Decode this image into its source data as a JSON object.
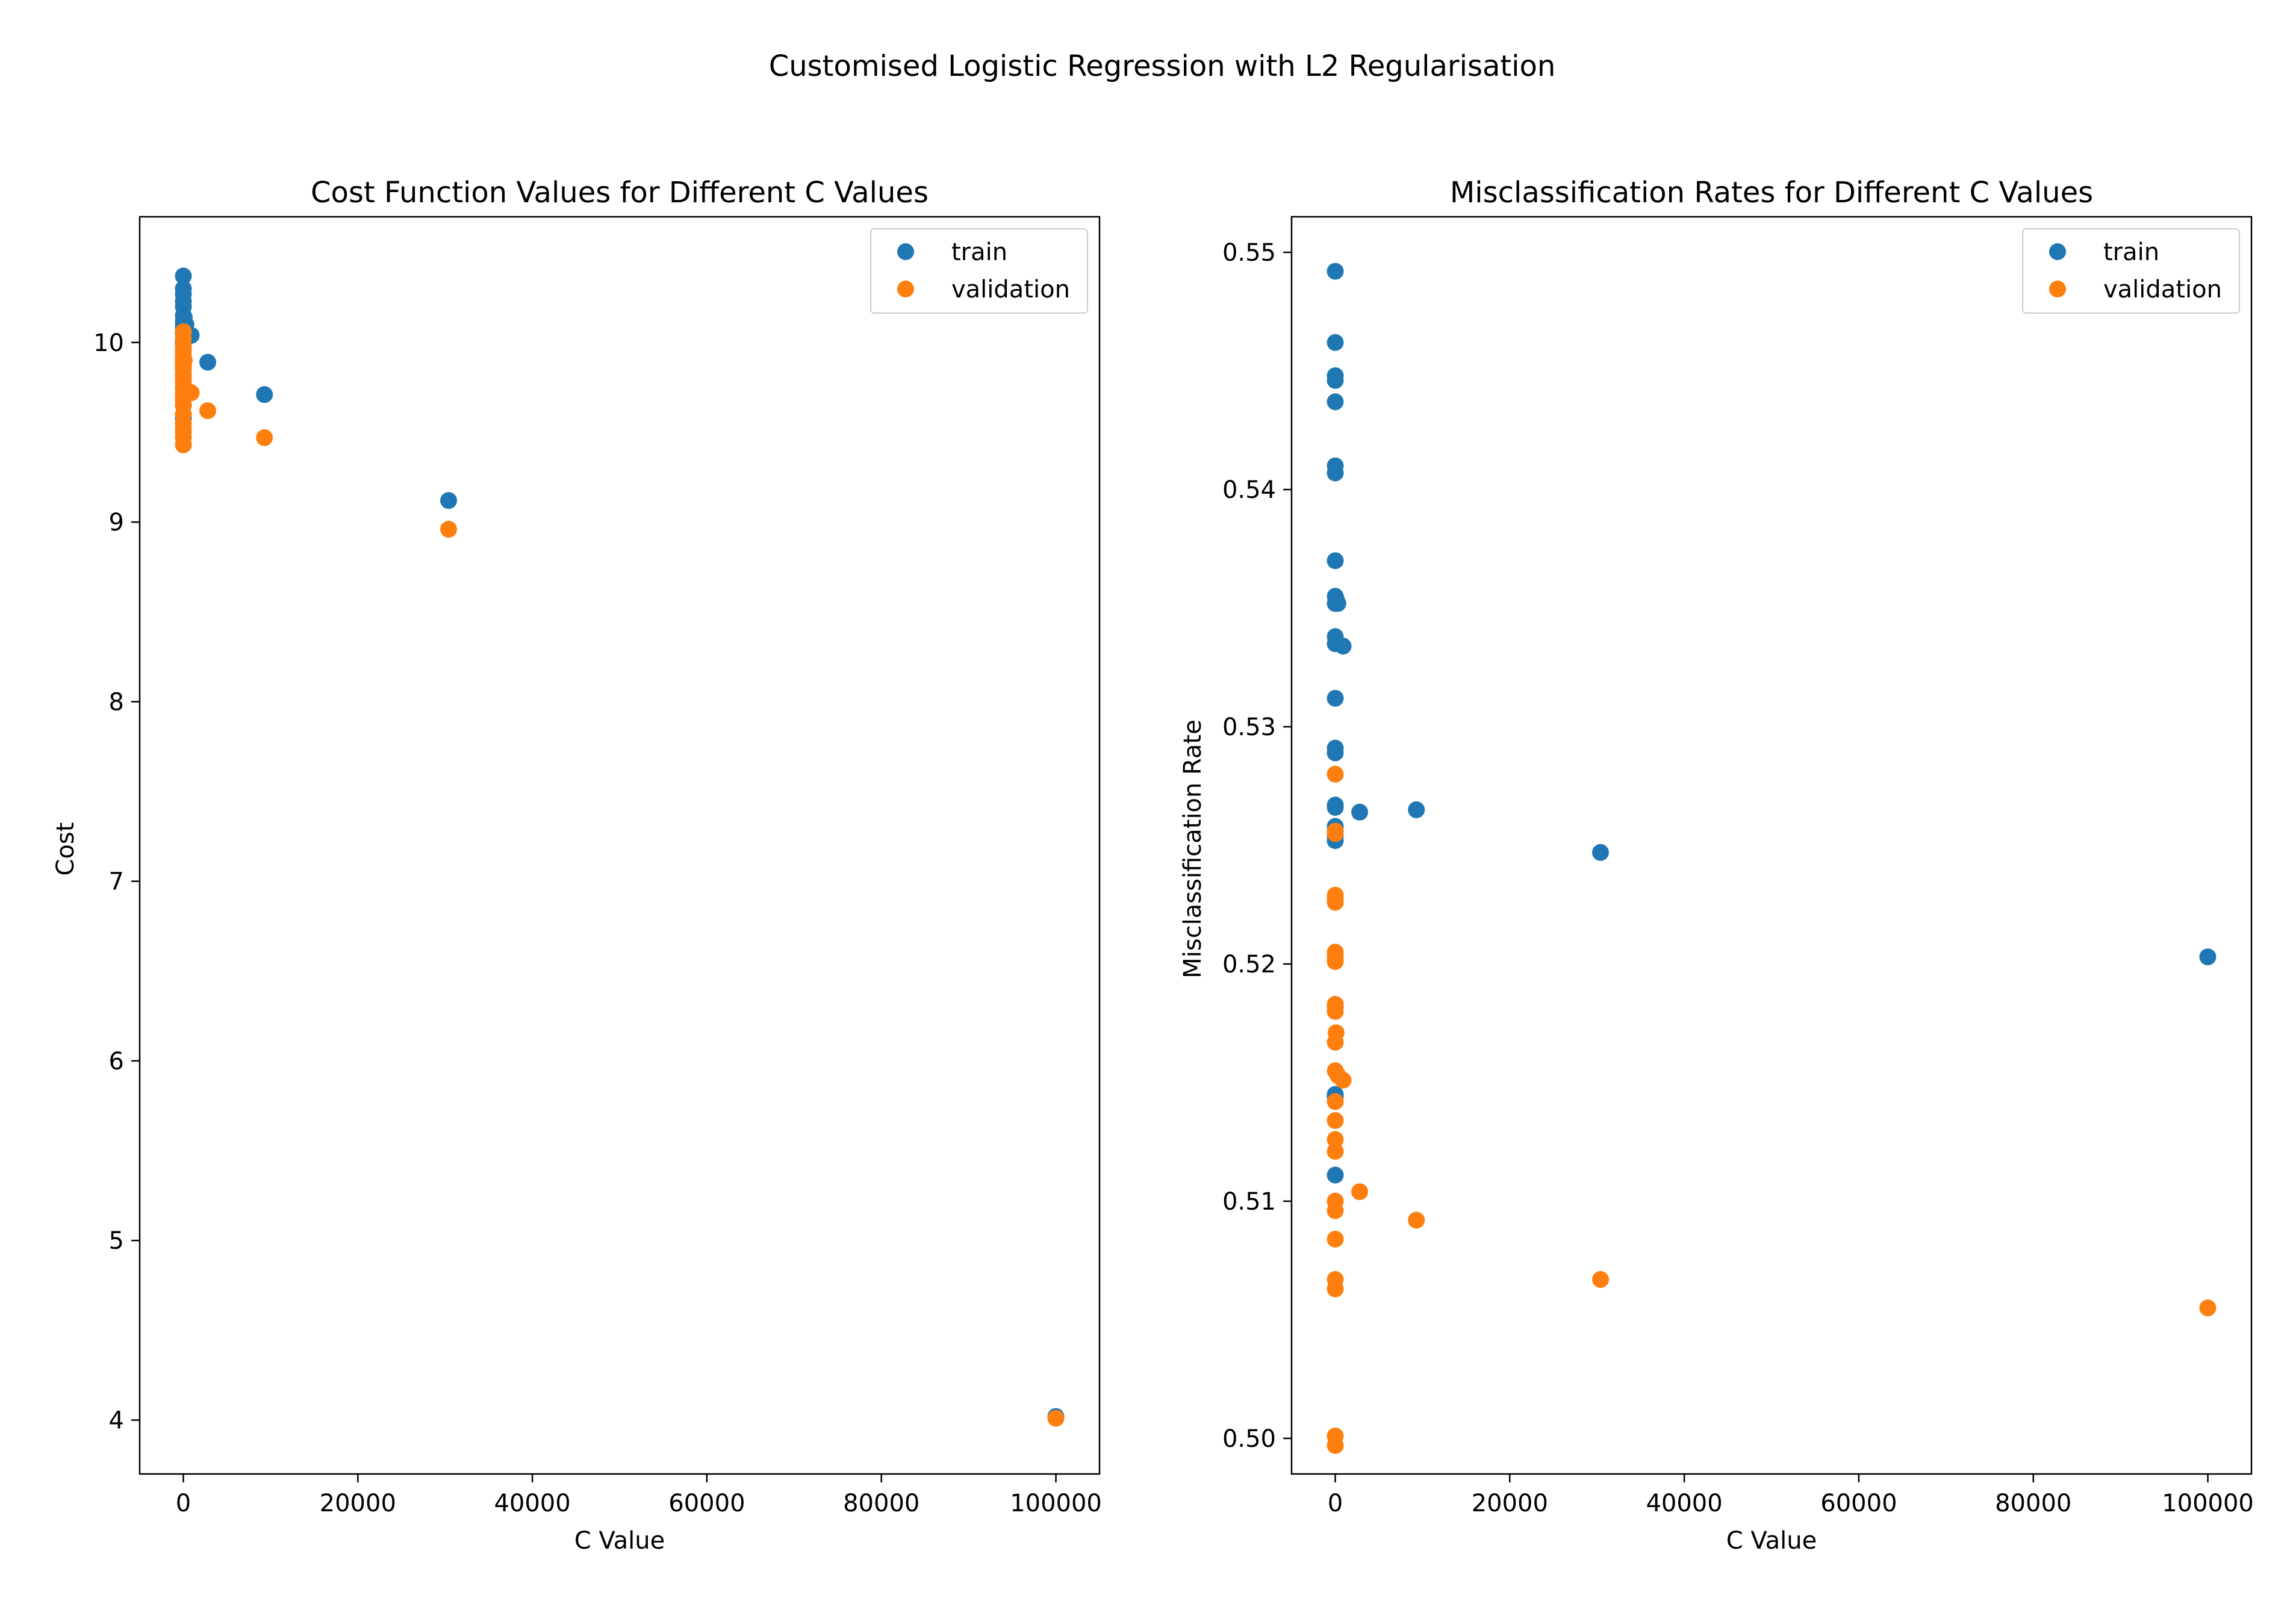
{
  "figure": {
    "suptitle": "Customised Logistic Regression with L2 Regularisation"
  },
  "colors": {
    "train": "#1f77b4",
    "validation": "#ff7f0e",
    "axes": "#000000",
    "background": "#ffffff"
  },
  "chart_data": [
    {
      "type": "scatter",
      "title": "Cost Function Values for Different C Values",
      "xlabel": "C Value",
      "ylabel": "Cost",
      "xlim": [
        -5000,
        105000
      ],
      "ylim": [
        3.7,
        10.7
      ],
      "xticks": [
        0,
        20000,
        40000,
        60000,
        80000,
        100000
      ],
      "xtick_labels": [
        "0",
        "20000",
        "40000",
        "60000",
        "80000",
        "100000"
      ],
      "yticks": [
        4,
        5,
        6,
        7,
        8,
        9,
        10
      ],
      "ytick_labels": [
        "4",
        "5",
        "6",
        "7",
        "8",
        "9",
        "10"
      ],
      "grid": false,
      "legend": "upper right",
      "series": [
        {
          "name": "train",
          "x": [
            0,
            0,
            0,
            0,
            0,
            0,
            0,
            0,
            0,
            0,
            0,
            0,
            0,
            0,
            0,
            0,
            0,
            0,
            0,
            0,
            0,
            0,
            0,
            0,
            0,
            100,
            300,
            900,
            2800,
            9300,
            30400,
            100000
          ],
          "y": [
            10.37,
            10.3,
            10.27,
            10.23,
            10.2,
            10.15,
            10.12,
            10.1,
            10.08,
            10.05,
            10.02,
            10.0,
            9.98,
            9.95,
            9.92,
            9.9,
            9.87,
            9.85,
            9.82,
            9.8,
            9.75,
            9.7,
            9.65,
            9.6,
            9.58,
            10.14,
            10.1,
            10.04,
            9.89,
            9.71,
            9.12,
            4.02
          ]
        },
        {
          "name": "validation",
          "x": [
            0,
            0,
            0,
            0,
            0,
            0,
            0,
            0,
            0,
            0,
            0,
            0,
            0,
            0,
            0,
            0,
            0,
            0,
            0,
            0,
            0,
            0,
            0,
            0,
            0,
            100,
            300,
            900,
            2800,
            9300,
            30400,
            100000
          ],
          "y": [
            10.06,
            10.02,
            9.98,
            9.95,
            9.92,
            9.9,
            9.87,
            9.85,
            9.82,
            9.8,
            9.78,
            9.75,
            9.72,
            9.7,
            9.68,
            9.65,
            9.6,
            9.55,
            9.52,
            9.5,
            9.47,
            9.43,
            9.9,
            9.88,
            9.86,
            9.9,
            9.73,
            9.72,
            9.62,
            9.47,
            8.96,
            4.01
          ]
        }
      ]
    },
    {
      "type": "scatter",
      "title": "Misclassification Rates for Different C Values",
      "xlabel": "C Value",
      "ylabel": "Misclassification Rate",
      "xlim": [
        -5000,
        105000
      ],
      "ylim": [
        0.4985,
        0.5515
      ],
      "xticks": [
        0,
        20000,
        40000,
        60000,
        80000,
        100000
      ],
      "xtick_labels": [
        "0",
        "20000",
        "40000",
        "60000",
        "80000",
        "100000"
      ],
      "yticks": [
        0.5,
        0.51,
        0.52,
        0.53,
        0.54,
        0.55
      ],
      "ytick_labels": [
        "0.50",
        "0.51",
        "0.52",
        "0.53",
        "0.54",
        "0.55"
      ],
      "grid": false,
      "legend": "upper right",
      "series": [
        {
          "name": "train",
          "x": [
            0,
            0,
            0,
            0,
            0,
            0,
            0,
            0,
            0,
            0,
            0,
            0,
            0,
            0,
            0,
            0,
            0,
            0,
            0,
            0,
            0,
            0,
            0,
            0,
            0,
            100,
            300,
            900,
            2800,
            9300,
            30400,
            100000
          ],
          "y": [
            0.5492,
            0.5462,
            0.5448,
            0.5446,
            0.5437,
            0.541,
            0.5407,
            0.537,
            0.5355,
            0.5352,
            0.5338,
            0.5335,
            0.5312,
            0.5291,
            0.5289,
            0.5267,
            0.5258,
            0.5252,
            0.5182,
            0.5145,
            0.5111,
            0.5144,
            0.5266,
            0.5256,
            0.5254,
            0.5354,
            0.5352,
            0.5334,
            0.5264,
            0.5265,
            0.5247,
            0.5203
          ]
        },
        {
          "name": "validation",
          "x": [
            0,
            0,
            0,
            0,
            0,
            0,
            0,
            0,
            0,
            0,
            0,
            0,
            0,
            0,
            0,
            0,
            0,
            0,
            0,
            0,
            0,
            0,
            0,
            0,
            0,
            100,
            300,
            900,
            2800,
            9300,
            30400,
            100000
          ],
          "y": [
            0.528,
            0.5255,
            0.5229,
            0.5226,
            0.5205,
            0.5201,
            0.5183,
            0.518,
            0.5167,
            0.5155,
            0.5142,
            0.5134,
            0.5126,
            0.5121,
            0.51,
            0.5096,
            0.5084,
            0.5067,
            0.5063,
            0.5001,
            0.4997,
            0.5256,
            0.5227,
            0.5203,
            0.5182,
            0.5171,
            0.5153,
            0.5151,
            0.5104,
            0.5092,
            0.5067,
            0.5055
          ]
        }
      ]
    }
  ]
}
